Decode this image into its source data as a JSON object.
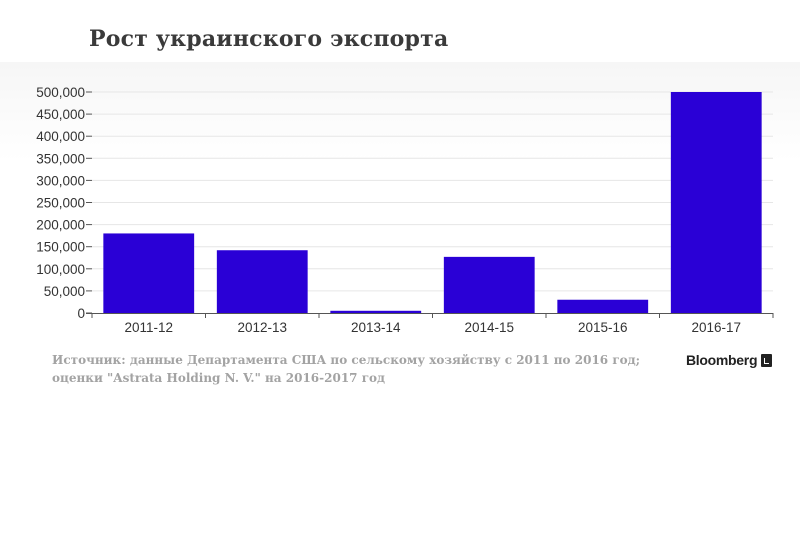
{
  "title": "Рост украинского экспорта",
  "source_text": "Источник: данные Департамента США по сельскому хозяйству с 2011 по 2016 год; оценки \"Astrata Holding N. V.\" на 2016-2017 год",
  "logo_text": "Bloomberg",
  "colors": {
    "bar": "#2a00d6",
    "grid": "#e6e6e6",
    "axis": "#555555"
  },
  "chart_data": {
    "type": "bar",
    "title": "Рост украинского экспорта",
    "categories": [
      "2011-12",
      "2012-13",
      "2013-14",
      "2014-15",
      "2015-16",
      "2016-17"
    ],
    "values": [
      180000,
      142000,
      5000,
      127000,
      30000,
      500000
    ],
    "ylim": [
      0,
      500000
    ],
    "yticks": [
      0,
      50000,
      100000,
      150000,
      200000,
      250000,
      300000,
      350000,
      400000,
      450000,
      500000
    ],
    "ytick_labels": [
      "0",
      "50,000",
      "100,000",
      "150,000",
      "200,000",
      "250,000",
      "300,000",
      "350,000",
      "400,000",
      "450,000",
      "500,000"
    ],
    "xlabel": "",
    "ylabel": "",
    "grid": true
  }
}
